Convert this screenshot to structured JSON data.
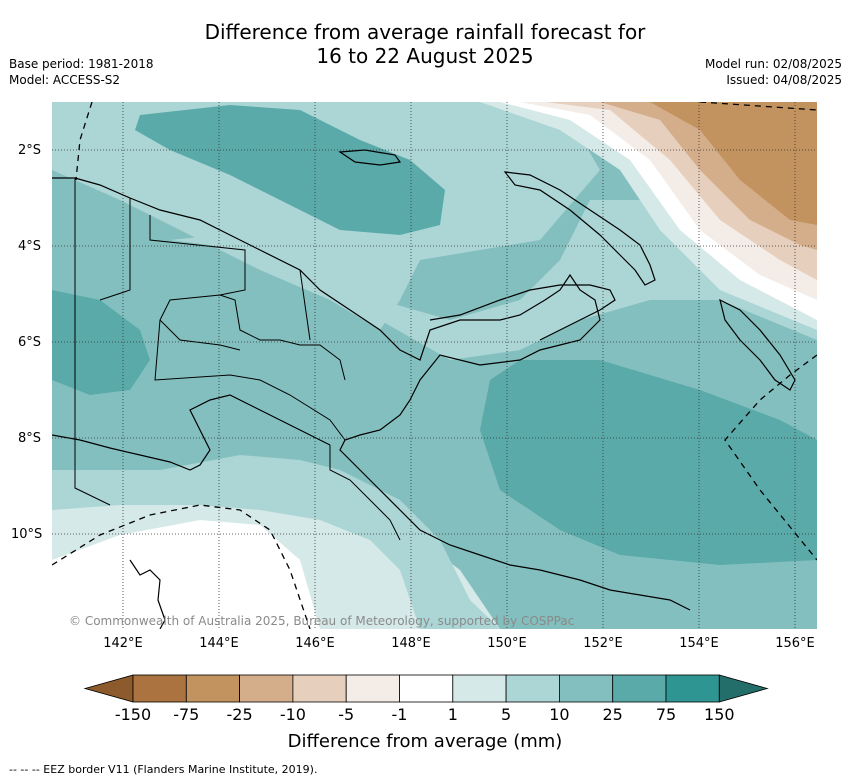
{
  "title_line1": "Difference from average rainfall forecast for",
  "title_line2": "16 to 22 August 2025",
  "meta_left": {
    "base_period": "Base period: 1981-2018",
    "model": "Model: ACCESS-S2"
  },
  "meta_right": {
    "model_run": "Model run: 02/08/2025",
    "issued": "Issued: 04/08/2025"
  },
  "lat_labels": [
    "2°S",
    "4°S",
    "6°S",
    "8°S",
    "10°S"
  ],
  "lon_labels": [
    "142°E",
    "144°E",
    "146°E",
    "148°E",
    "150°E",
    "152°E",
    "154°E",
    "156°E"
  ],
  "copyright": "© Commonwealth of Australia 2025, Bureau of Meteorology, supported by COSPPac",
  "colorbar": {
    "ticks": [
      "-150",
      "-75",
      "-25",
      "-10",
      "-5",
      "-1",
      "1",
      "5",
      "10",
      "25",
      "75",
      "150"
    ],
    "colors": [
      "#8c5a2b",
      "#aa733f",
      "#c3935f",
      "#d4ae8b",
      "#e6cfbc",
      "#f3ece7",
      "#ffffff",
      "#d5e9e8",
      "#acd5d5",
      "#84bfbf",
      "#5aaaaa",
      "#2e9592",
      "#236d6a"
    ],
    "label": "Difference from average (mm)"
  },
  "eez_note": "--  --  -- EEZ border V11 (Flanders Marine Institute, 2019)."
}
